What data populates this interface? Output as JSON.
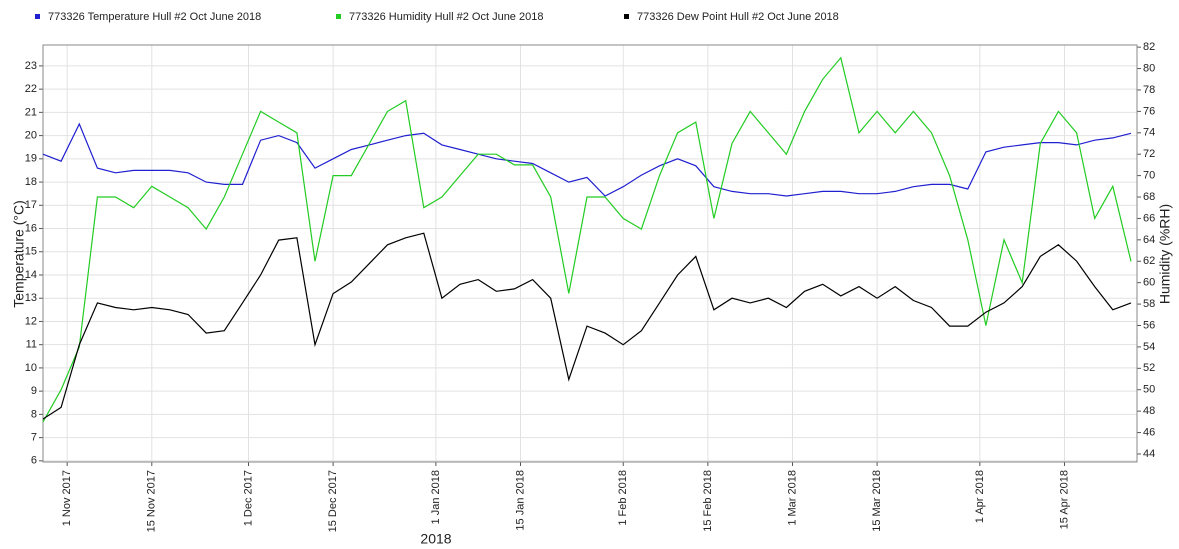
{
  "chart_data": {
    "type": "line",
    "x_label": "2018",
    "y_label": "Temperature (°C)",
    "y2_label": "Humidity (%RH)",
    "x": [
      "2017-10-28",
      "2017-10-31",
      "2017-11-03",
      "2017-11-06",
      "2017-11-09",
      "2017-11-12",
      "2017-11-15",
      "2017-11-18",
      "2017-11-21",
      "2017-11-24",
      "2017-11-27",
      "2017-11-30",
      "2017-12-03",
      "2017-12-06",
      "2017-12-09",
      "2017-12-12",
      "2017-12-15",
      "2017-12-18",
      "2017-12-21",
      "2017-12-24",
      "2017-12-27",
      "2017-12-30",
      "2018-01-02",
      "2018-01-05",
      "2018-01-08",
      "2018-01-11",
      "2018-01-14",
      "2018-01-17",
      "2018-01-20",
      "2018-01-23",
      "2018-01-26",
      "2018-01-29",
      "2018-02-01",
      "2018-02-04",
      "2018-02-07",
      "2018-02-10",
      "2018-02-13",
      "2018-02-16",
      "2018-02-19",
      "2018-02-22",
      "2018-02-25",
      "2018-02-28",
      "2018-03-03",
      "2018-03-06",
      "2018-03-09",
      "2018-03-12",
      "2018-03-15",
      "2018-03-18",
      "2018-03-21",
      "2018-03-24",
      "2018-03-27",
      "2018-03-30",
      "2018-04-02",
      "2018-04-05",
      "2018-04-08",
      "2018-04-11",
      "2018-04-14",
      "2018-04-17",
      "2018-04-20",
      "2018-04-23",
      "2018-04-26"
    ],
    "series": [
      {
        "name": "773326  Temperature Hull #2 Oct June 2018",
        "color": "#2020d0",
        "axis": "y",
        "values": [
          19.2,
          18.9,
          20.5,
          18.6,
          18.4,
          18.5,
          18.5,
          18.5,
          18.4,
          18.0,
          17.9,
          17.9,
          19.8,
          20.0,
          19.7,
          18.6,
          19.0,
          19.4,
          19.6,
          19.8,
          20.0,
          20.1,
          19.6,
          19.4,
          19.2,
          19.0,
          18.9,
          18.8,
          18.4,
          18.0,
          18.2,
          17.4,
          17.8,
          18.3,
          18.7,
          19.0,
          18.7,
          17.8,
          17.6,
          17.5,
          17.5,
          17.4,
          17.5,
          17.6,
          17.6,
          17.5,
          17.5,
          17.6,
          17.8,
          17.9,
          17.9,
          17.7,
          19.3,
          19.5,
          19.6,
          19.7,
          19.7,
          19.6,
          19.8,
          19.9,
          20.1
        ]
      },
      {
        "name": "773326  Humidity Hull #2 Oct June 2018",
        "color": "#22cc22",
        "axis": "y2",
        "values": [
          47,
          50,
          54,
          68,
          68,
          67,
          69,
          68,
          67,
          65,
          68,
          72,
          76,
          75,
          74,
          62,
          70,
          70,
          73,
          76,
          77,
          67,
          68,
          70,
          72,
          72,
          71,
          71,
          68,
          59,
          68,
          68,
          66,
          65,
          70,
          74,
          75,
          66,
          73,
          76,
          74,
          72,
          76,
          79,
          81,
          74,
          76,
          74,
          76,
          74,
          70,
          64,
          56,
          64,
          60,
          73,
          76,
          74,
          66,
          69,
          62
        ]
      },
      {
        "name": "773326  Dew Point Hull #2 Oct June 2018",
        "color": "#000000",
        "axis": "y",
        "values": [
          7.8,
          8.3,
          11,
          12.8,
          12.6,
          12.5,
          12.6,
          12.5,
          12.3,
          11.5,
          11.6,
          12.8,
          14.0,
          15.5,
          15.6,
          11.0,
          13.2,
          13.7,
          14.5,
          15.3,
          15.6,
          15.8,
          13.0,
          13.6,
          13.8,
          13.3,
          13.4,
          13.8,
          13.0,
          9.5,
          11.8,
          11.5,
          11.0,
          11.6,
          12.8,
          14.0,
          14.8,
          12.5,
          13.0,
          12.8,
          13.0,
          12.6,
          13.3,
          13.6,
          13.1,
          13.5,
          13.0,
          13.5,
          12.9,
          12.6,
          11.8,
          11.8,
          12.4,
          12.8,
          13.5,
          14.8,
          15.3,
          14.6,
          13.5,
          12.5,
          12.8
        ]
      }
    ],
    "xlim": [
      "2017-10-28",
      "2018-04-27"
    ],
    "xticks": [
      {
        "value": "2017-11-01",
        "label": "1 Nov 2017"
      },
      {
        "value": "2017-11-15",
        "label": "15 Nov 2017"
      },
      {
        "value": "2017-12-01",
        "label": "1 Dec 2017"
      },
      {
        "value": "2017-12-15",
        "label": "15 Dec 2017"
      },
      {
        "value": "2018-01-01",
        "label": "1 Jan 2018"
      },
      {
        "value": "2018-01-15",
        "label": "15 Jan 2018"
      },
      {
        "value": "2018-02-01",
        "label": "1 Feb 2018"
      },
      {
        "value": "2018-02-15",
        "label": "15 Feb 2018"
      },
      {
        "value": "2018-03-01",
        "label": "1 Mar 2018"
      },
      {
        "value": "2018-03-15",
        "label": "15 Mar 2018"
      },
      {
        "value": "2018-04-01",
        "label": "1 Apr 2018"
      },
      {
        "value": "2018-04-15",
        "label": "15 Apr 2018"
      }
    ],
    "ylim": [
      5.95,
      23.9
    ],
    "yticks": [
      6,
      7,
      8,
      9,
      10,
      11,
      12,
      13,
      14,
      15,
      16,
      17,
      18,
      19,
      20,
      21,
      22,
      23
    ],
    "y2lim": [
      43.25,
      82.2
    ],
    "y2ticks": [
      44,
      46,
      48,
      50,
      52,
      54,
      56,
      58,
      60,
      62,
      64,
      66,
      68,
      70,
      72,
      74,
      76,
      78,
      80,
      82
    ],
    "grid": true
  }
}
